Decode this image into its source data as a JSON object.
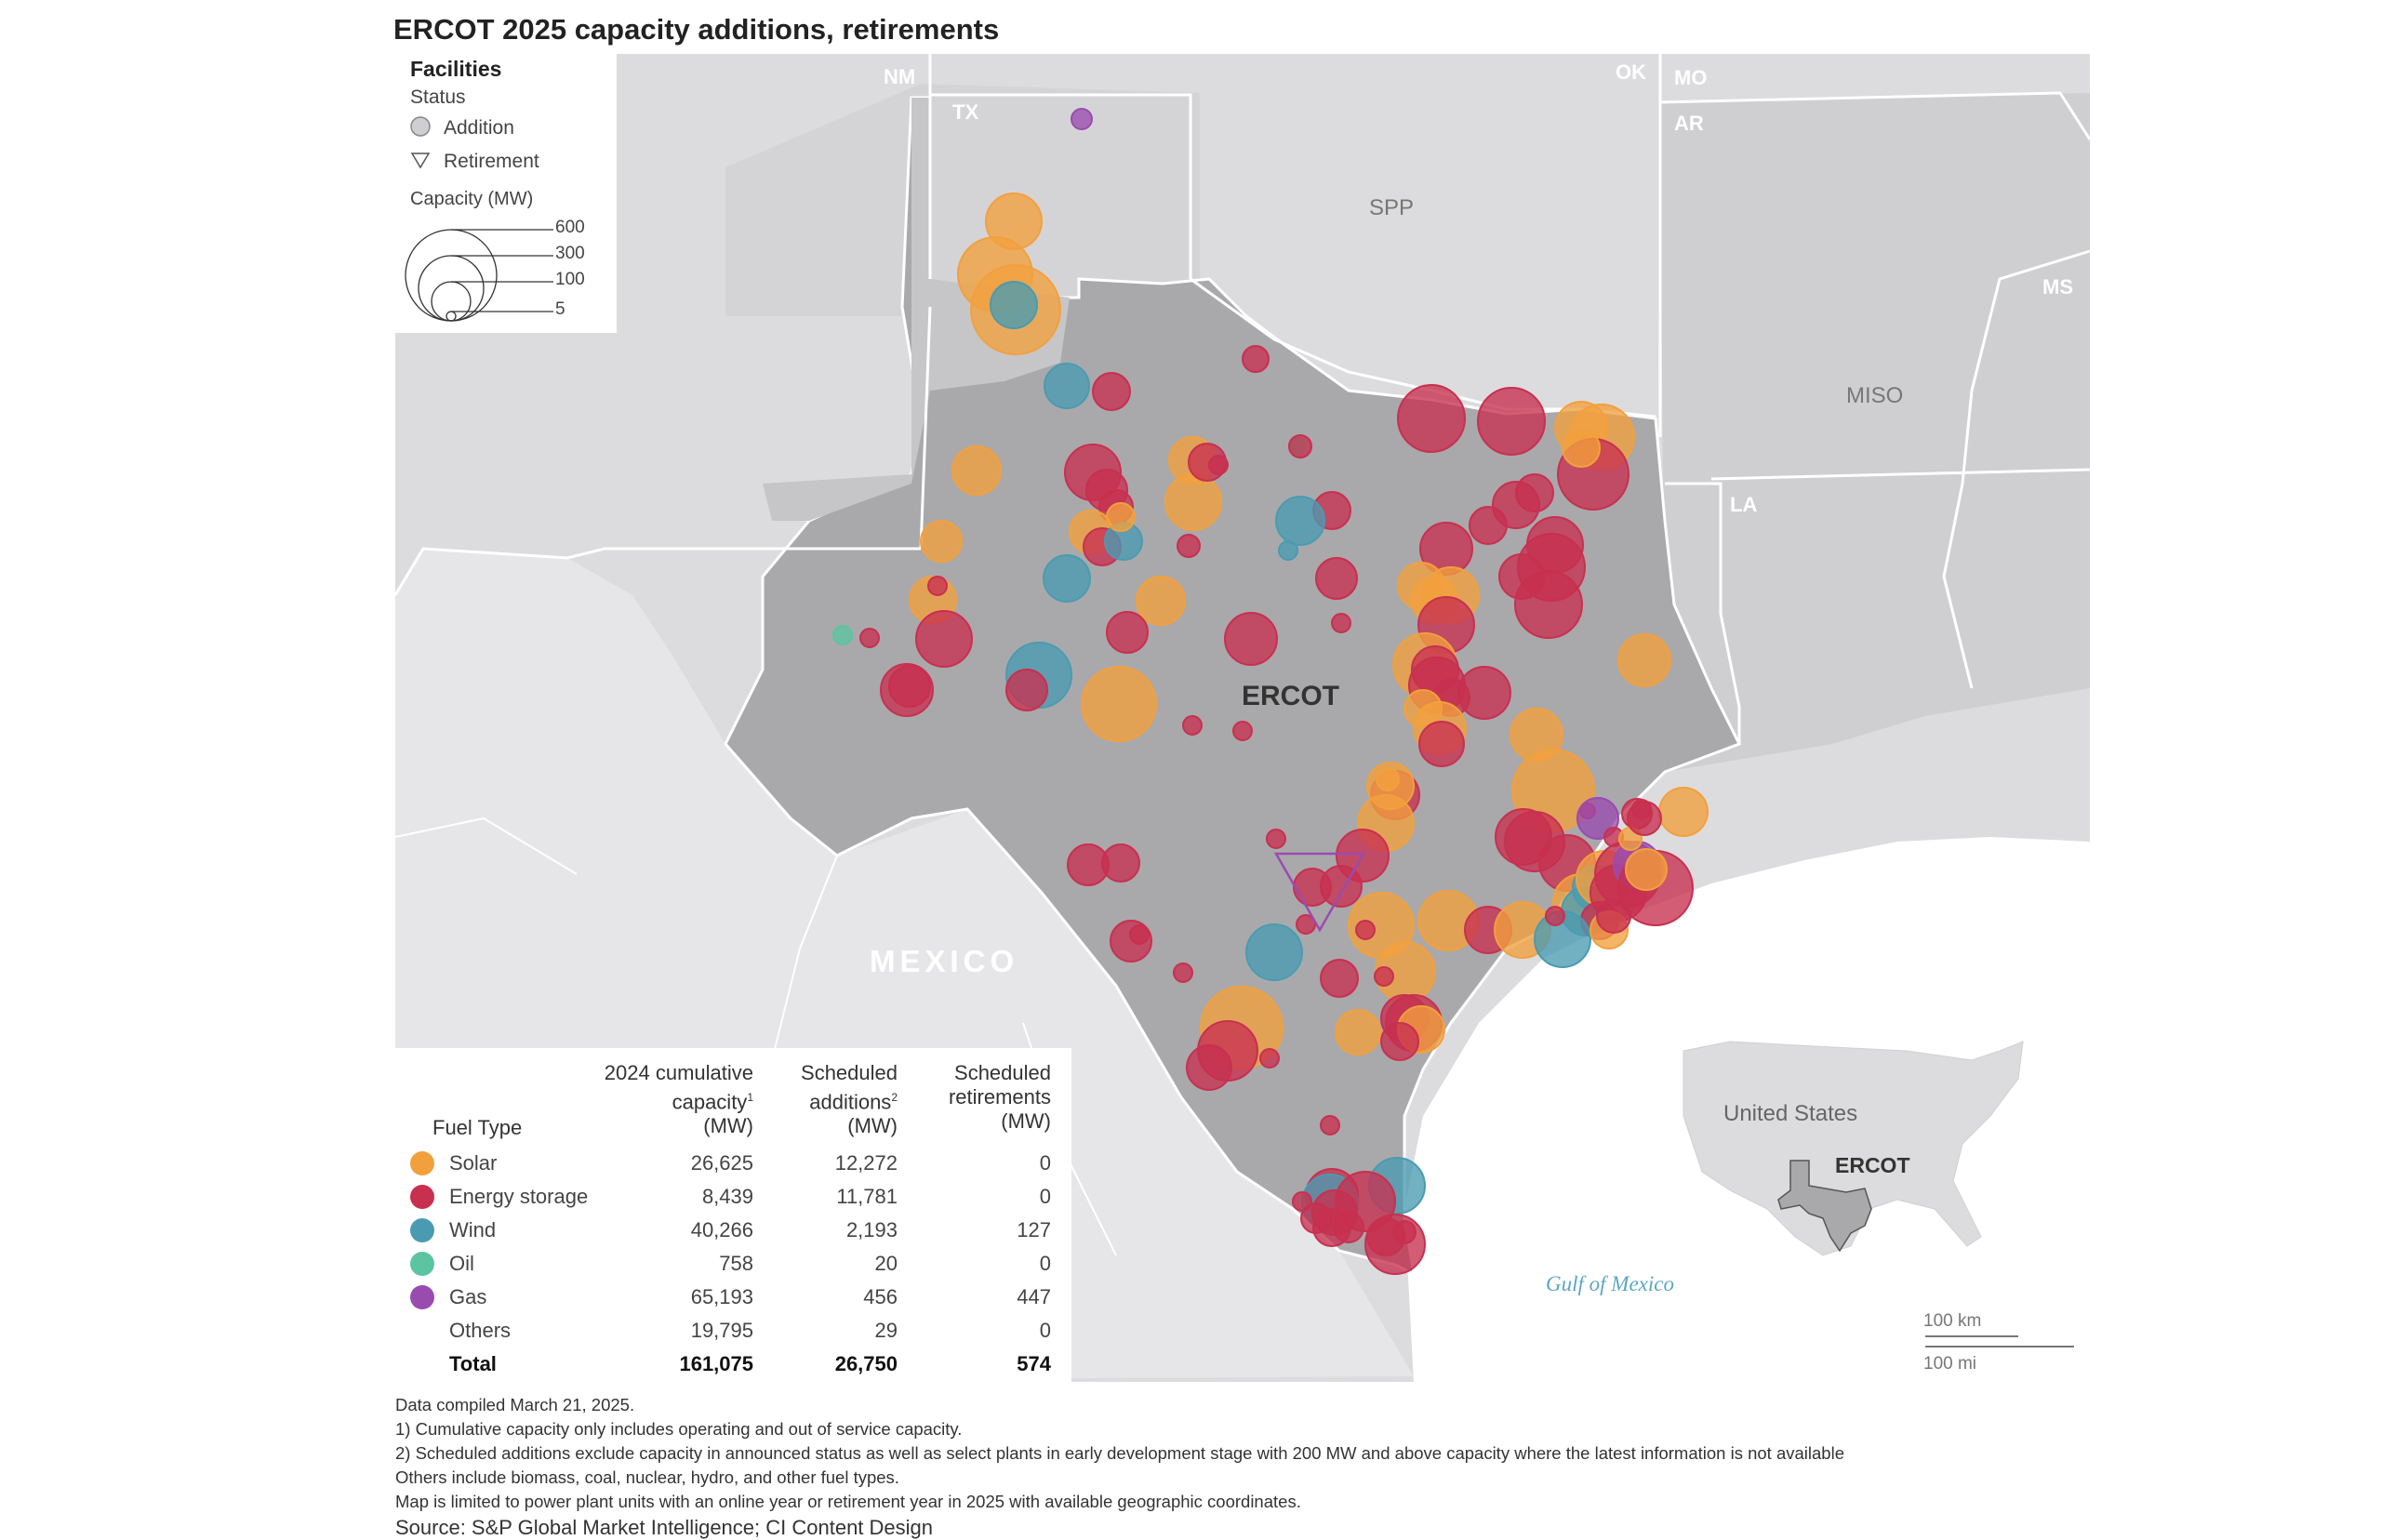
{
  "title": "ERCOT 2025 capacity additions, retirements",
  "colors": {
    "solar": "#f2a03d",
    "energy_storage": "#c8304f",
    "wind": "#4a9bb1",
    "oil": "#5cc4a0",
    "gas": "#9a4bb0",
    "ercot_fill": "#a9a9ab",
    "land": "#dcdcde",
    "water": "#ffffff"
  },
  "legend": {
    "facilities_label": "Facilities",
    "status_label": "Status",
    "addition_label": "Addition",
    "retirement_label": "Retirement",
    "capacity_label": "Capacity (MW)",
    "capacity_values": [
      "600",
      "300",
      "100",
      "5"
    ]
  },
  "map_labels": {
    "nm": "NM",
    "tx": "TX",
    "ok": "OK",
    "mo": "MO",
    "ar": "AR",
    "ms": "MS",
    "la": "LA",
    "spp": "SPP",
    "miso": "MISO",
    "ercot": "ERCOT",
    "mexico": "MEXICO",
    "gulf": "Gulf of Mexico",
    "inset_country": "United States",
    "inset_ercot": "ERCOT",
    "scale_km": "100 km",
    "scale_mi": "100 mi"
  },
  "table": {
    "headers": {
      "fuel_type": "Fuel Type",
      "cumulative": [
        "2024 cumulative",
        "capacity",
        "(MW)"
      ],
      "additions": [
        "Scheduled",
        "additions",
        "(MW)"
      ],
      "retirements": [
        "Scheduled",
        "retirements",
        "(MW)"
      ],
      "cumulative_sup": "1",
      "additions_sup": "2"
    },
    "rows": [
      {
        "fuel": "Solar",
        "cumulative": "26,625",
        "additions": "12,272",
        "retirements": "0",
        "color_key": "solar"
      },
      {
        "fuel": "Energy storage",
        "cumulative": "8,439",
        "additions": "11,781",
        "retirements": "0",
        "color_key": "energy_storage"
      },
      {
        "fuel": "Wind",
        "cumulative": "40,266",
        "additions": "2,193",
        "retirements": "127",
        "color_key": "wind"
      },
      {
        "fuel": "Oil",
        "cumulative": "758",
        "additions": "20",
        "retirements": "0",
        "color_key": "oil"
      },
      {
        "fuel": "Gas",
        "cumulative": "65,193",
        "additions": "456",
        "retirements": "447",
        "color_key": "gas"
      },
      {
        "fuel": "Others",
        "cumulative": "19,795",
        "additions": "29",
        "retirements": "0",
        "color_key": ""
      }
    ],
    "total": {
      "fuel": "Total",
      "cumulative": "161,075",
      "additions": "26,750",
      "retirements": "574"
    }
  },
  "notes": [
    "Data compiled March 21, 2025.",
    "1) Cumulative capacity only includes operating and out of service capacity.",
    "2) Scheduled additions exclude capacity in announced status as well as select plants in early development stage with 200 MW and above capacity where the latest information is not available",
    "Others include biomass, coal, nuclear,  hydro, and other fuel types.",
    "Map is limited to power plant units with an online year or retirement year in 2025 with  available geographic coordinates."
  ],
  "source": "Source: S&P Global Market Intelligence; CI Content Design"
}
